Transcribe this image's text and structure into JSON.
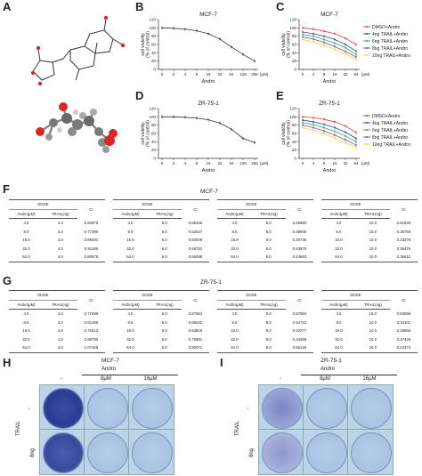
{
  "panels": {
    "A": "A",
    "B": "B",
    "C": "C",
    "D": "D",
    "E": "E",
    "F": "F",
    "G": "G",
    "H": "H",
    "I": "I"
  },
  "charts_common": {
    "ylabel": "cell viability\n(% of control)",
    "xlabel": "Andro",
    "unit": "(μM)",
    "x_ticks": [
      "0",
      "2",
      "4",
      "8",
      "16",
      "32",
      "64",
      "128",
      "256"
    ],
    "x_ticks_short": [
      "0",
      "4",
      "8",
      "16",
      "32",
      "64"
    ],
    "y_ticks": [
      "0",
      "20",
      "40",
      "60",
      "80",
      "100",
      "120"
    ]
  },
  "chart_data": [
    {
      "type": "line",
      "title": "MCF-7",
      "xlabel": "Andro",
      "ylabel": "cell viability (% of control)",
      "categories": [
        "0",
        "2",
        "4",
        "8",
        "16",
        "32",
        "64",
        "128",
        "256"
      ],
      "values": [
        100,
        99,
        97,
        93,
        86,
        73,
        54,
        36,
        20
      ],
      "ylim": [
        0,
        120
      ]
    },
    {
      "type": "line",
      "title": "MCF-7",
      "xlabel": "Andro",
      "ylabel": "cell viability (% of control)",
      "categories": [
        "0",
        "4",
        "8",
        "16",
        "32",
        "64"
      ],
      "series": [
        {
          "name": "DMSO+Andro",
          "color": "#e5383b",
          "values": [
            100,
            97,
            92,
            86,
            75,
            60
          ]
        },
        {
          "name": "4ng TRAIL+Andro",
          "color": "#1f4aa8",
          "values": [
            90,
            86,
            80,
            72,
            60,
            44
          ]
        },
        {
          "name": "6ng TRAIL+Andro",
          "color": "#3aa84a",
          "values": [
            84,
            80,
            72,
            63,
            52,
            36
          ]
        },
        {
          "name": "8ng TRAIL+Andro",
          "color": "#8e44ad",
          "values": [
            78,
            73,
            65,
            55,
            43,
            30
          ]
        },
        {
          "name": "10ng TRAIL+Andro",
          "color": "#f1d33a",
          "values": [
            72,
            66,
            58,
            48,
            37,
            25
          ]
        }
      ],
      "ylim": [
        0,
        120
      ]
    },
    {
      "type": "line",
      "title": "ZR-75-1",
      "xlabel": "Andro",
      "ylabel": "cell viability (% of control)",
      "categories": [
        "0",
        "2",
        "4",
        "8",
        "16",
        "32",
        "64",
        "128",
        "256"
      ],
      "values": [
        100,
        100,
        99,
        97,
        93,
        85,
        70,
        48,
        38
      ],
      "ylim": [
        0,
        120
      ]
    },
    {
      "type": "line",
      "title": "ZR-75-1",
      "xlabel": "Andro",
      "ylabel": "cell viability (% of control)",
      "categories": [
        "0",
        "4",
        "8",
        "16",
        "32",
        "64"
      ],
      "series": [
        {
          "name": "DMSO+Andro",
          "color": "#e5383b",
          "values": [
            100,
            98,
            94,
            88,
            78,
            62
          ]
        },
        {
          "name": "4ng TRAIL+Andro",
          "color": "#1f4aa8",
          "values": [
            92,
            88,
            82,
            74,
            63,
            48
          ]
        },
        {
          "name": "6ng TRAIL+Andro",
          "color": "#3aa84a",
          "values": [
            86,
            81,
            74,
            65,
            54,
            40
          ]
        },
        {
          "name": "8ng TRAIL+Andro",
          "color": "#8e44ad",
          "values": [
            80,
            74,
            66,
            56,
            45,
            32
          ]
        },
        {
          "name": "10ng TRAIL+Andro",
          "color": "#f1d33a",
          "values": [
            74,
            68,
            59,
            49,
            38,
            27
          ]
        }
      ],
      "ylim": [
        0,
        120
      ]
    }
  ],
  "tables": {
    "F_title": "MCF-7",
    "G_title": "ZR-75-1",
    "dose": "DOSE",
    "andro": "Andro(μM)",
    "trail": "TRAIL(ng)",
    "ci": "CI",
    "andro_doses": [
      "4.0",
      "8.0",
      "16.0",
      "32.0",
      "64.0"
    ],
    "F": [
      {
        "trail": "4.0",
        "ci": [
          "0.60976",
          "0.77390",
          "0.89491",
          "0.91185",
          "0.80878"
        ]
      },
      {
        "trail": "6.0",
        "ci": [
          "0.68455",
          "0.52637",
          "0.60009",
          "0.69752",
          "0.66089"
        ]
      },
      {
        "trail": "8.0",
        "ci": [
          "0.35685",
          "0.39938",
          "0.40730",
          "0.43976",
          "0.44683"
        ]
      },
      {
        "trail": "10.0",
        "ci": [
          "0.51825",
          "0.35750",
          "0.33279",
          "0.35476",
          "0.36612"
        ]
      }
    ],
    "G": [
      {
        "trail": "4.0",
        "ci": [
          "0.77699",
          "0.81369",
          "0.76413",
          "0.90780",
          "1.07425"
        ]
      },
      {
        "trail": "6.0",
        "ci": [
          "0.87684",
          "0.65032",
          "0.63815",
          "0.75581",
          "0.80071"
        ]
      },
      {
        "trail": "8.0",
        "ci": [
          "0.57984",
          "0.44742",
          "0.42277",
          "0.43458",
          "0.56140"
        ]
      },
      {
        "trail": "10.0",
        "ci": [
          "0.53058",
          "0.34101",
          "0.28855",
          "0.37426",
          "0.44374"
        ]
      }
    ]
  },
  "colony": {
    "H_title": "MCF-7",
    "I_title": "ZR-75-1",
    "andro": "Andro",
    "cols": [
      "-",
      "8μM",
      "16μM"
    ],
    "trail": "TRAIL",
    "rows": [
      "-",
      "8ng"
    ]
  }
}
